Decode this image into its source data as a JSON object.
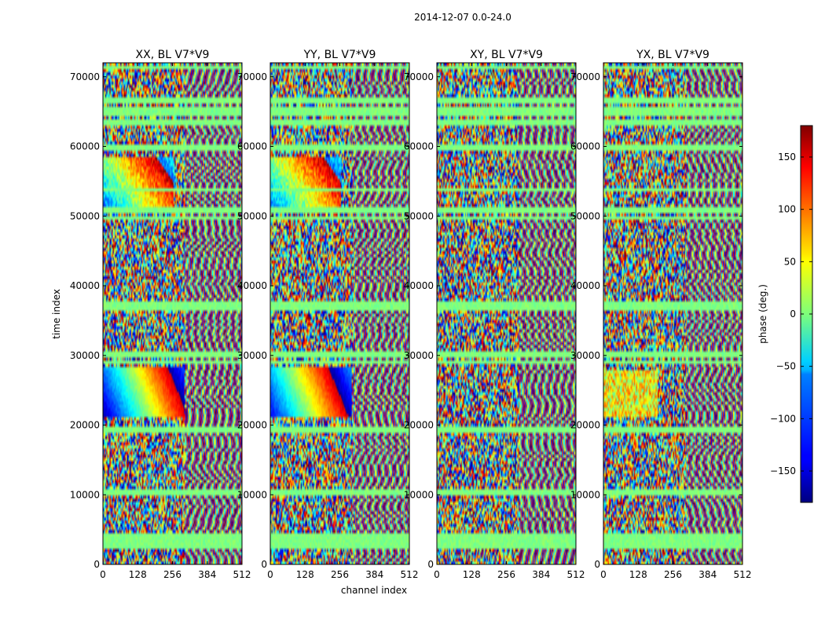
{
  "chart_data": {
    "type": "heatmap",
    "title": "2014-12-07 0.0-24.0",
    "xlabel": "channel index",
    "ylabel": "time index",
    "colormap": "jet",
    "xlim": [
      0,
      512
    ],
    "ylim": [
      0,
      72000
    ],
    "xticks": [
      0,
      128,
      256,
      384,
      512
    ],
    "xtick_labels": [
      "0",
      "128",
      "256",
      "384",
      "512"
    ],
    "yticks": [
      0,
      10000,
      20000,
      30000,
      40000,
      50000,
      60000,
      70000
    ],
    "ytick_labels": [
      "0",
      "10000",
      "20000",
      "30000",
      "40000",
      "50000",
      "60000",
      "70000"
    ],
    "panels": [
      {
        "title": "XX, BL V7*V9"
      },
      {
        "title": "YY, BL V7*V9"
      },
      {
        "title": "XY, BL V7*V9"
      },
      {
        "title": "YX, BL V7*V9"
      }
    ],
    "colorbar": {
      "label": "phase (deg.)",
      "range": [
        -180,
        180
      ],
      "ticks": [
        -150,
        -100,
        -50,
        0,
        50,
        100,
        150
      ],
      "tick_labels": [
        "−150",
        "−100",
        "−50",
        "0",
        "50",
        "100",
        "150"
      ]
    }
  }
}
